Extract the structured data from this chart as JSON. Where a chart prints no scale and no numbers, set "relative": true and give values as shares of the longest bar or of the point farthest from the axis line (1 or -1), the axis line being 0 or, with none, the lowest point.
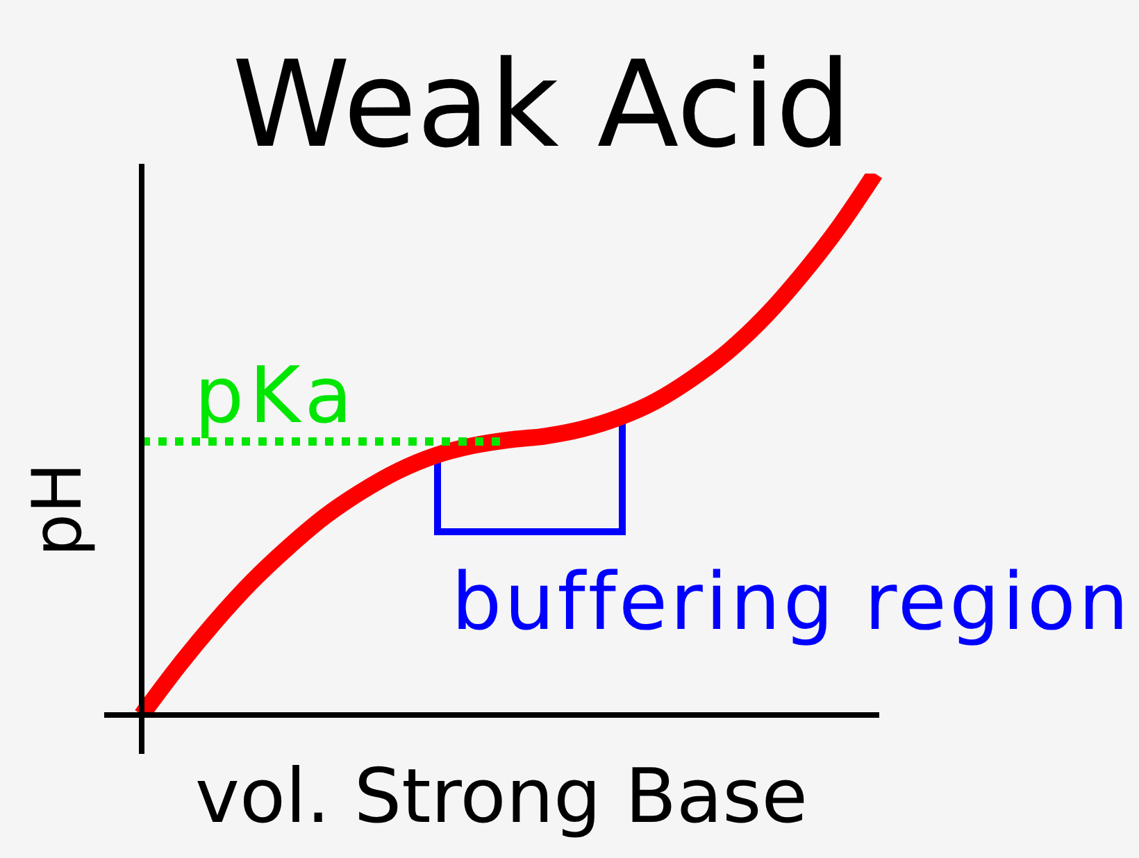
{
  "chart_data": {
    "type": "line",
    "title": "Weak Acid",
    "xlabel": "vol. Strong Base",
    "ylabel": "pH",
    "categories": [
      null,
      null,
      null,
      null,
      null,
      null,
      null,
      null,
      null,
      null,
      null,
      null,
      null,
      null,
      null,
      null,
      null,
      null,
      null,
      null,
      null
    ],
    "series": [
      {
        "color": "#ff0000",
        "values": [
          0,
          0.09,
          0.172,
          0.246,
          0.31,
          0.367,
          0.413,
          0.451,
          0.479,
          0.497,
          0.508,
          0.515,
          0.528,
          0.549,
          0.579,
          0.621,
          0.672,
          0.736,
          0.813,
          0.9,
          1
        ]
      }
    ],
    "relative": true,
    "ref_lines": [
      {
        "axis": "y",
        "value": 0.505,
        "label": "pKa",
        "color": "#00e600",
        "line_style": "dotted"
      }
    ],
    "annotations": [
      "buffering region"
    ],
    "marker": "none",
    "line_style": "solid"
  }
}
